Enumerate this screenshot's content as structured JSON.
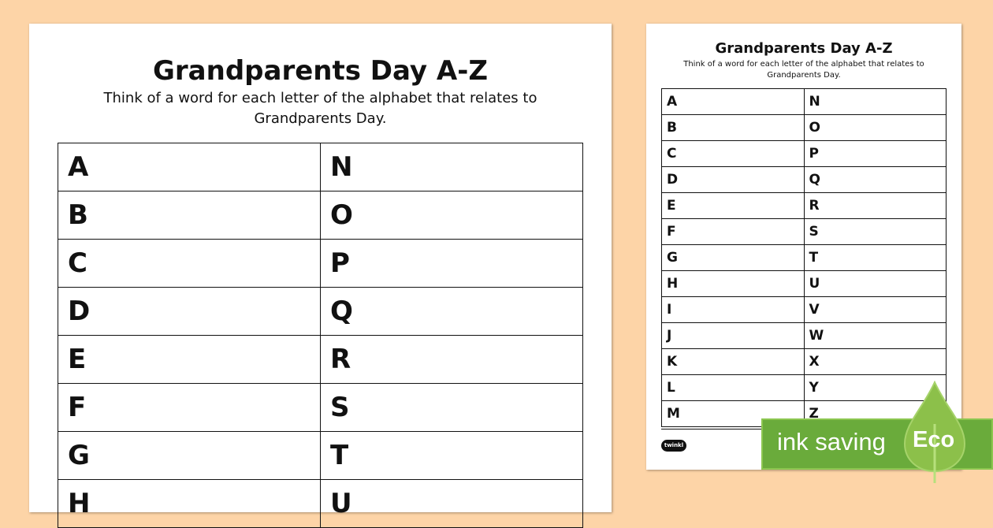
{
  "worksheet": {
    "title": "Grandparents Day A-Z",
    "subtitle_line1": "Think of a word for each letter of the alphabet that relates to",
    "subtitle_line2": "Grandparents Day.",
    "rows": [
      [
        "A",
        "N"
      ],
      [
        "B",
        "O"
      ],
      [
        "C",
        "P"
      ],
      [
        "D",
        "Q"
      ],
      [
        "E",
        "R"
      ],
      [
        "F",
        "S"
      ],
      [
        "G",
        "T"
      ],
      [
        "H",
        "U"
      ],
      [
        "I",
        "V"
      ],
      [
        "J",
        "W"
      ],
      [
        "K",
        "X"
      ],
      [
        "L",
        "Y"
      ],
      [
        "M",
        "Z"
      ]
    ]
  },
  "logo": "twinkl",
  "badge": {
    "text": "ink saving",
    "label": "Eco",
    "color": "#6aab3b"
  }
}
